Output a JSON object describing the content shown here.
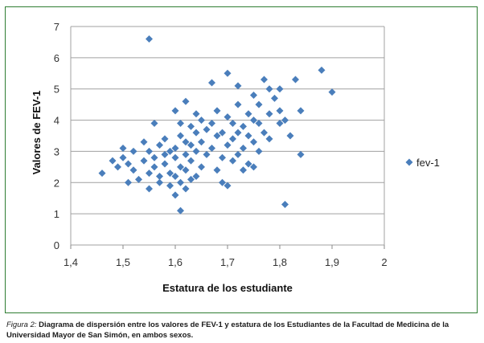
{
  "chart_data": {
    "type": "scatter",
    "xlabel": "Estatura de los estudiante",
    "ylabel": "Valores de FEV-1",
    "xlim": [
      1.4,
      2.0
    ],
    "ylim": [
      0,
      7
    ],
    "xticks": [
      "1,4",
      "1,5",
      "1,6",
      "1,7",
      "1,8",
      "1,9",
      "2"
    ],
    "yticks": [
      "0",
      "1",
      "2",
      "3",
      "4",
      "5",
      "6",
      "7"
    ],
    "grid": "horizontal",
    "legend_position": "right",
    "series": [
      {
        "name": "fev-1",
        "color": "#4a7ebb",
        "marker": "diamond",
        "points": [
          [
            1.46,
            2.3
          ],
          [
            1.48,
            2.7
          ],
          [
            1.49,
            2.5
          ],
          [
            1.5,
            2.8
          ],
          [
            1.5,
            3.1
          ],
          [
            1.51,
            2.0
          ],
          [
            1.51,
            2.6
          ],
          [
            1.52,
            3.0
          ],
          [
            1.52,
            2.4
          ],
          [
            1.53,
            2.1
          ],
          [
            1.54,
            2.7
          ],
          [
            1.54,
            3.3
          ],
          [
            1.55,
            1.8
          ],
          [
            1.55,
            2.3
          ],
          [
            1.55,
            3.0
          ],
          [
            1.55,
            6.6
          ],
          [
            1.56,
            2.5
          ],
          [
            1.56,
            3.9
          ],
          [
            1.56,
            2.8
          ],
          [
            1.57,
            2.2
          ],
          [
            1.57,
            3.2
          ],
          [
            1.57,
            2.0
          ],
          [
            1.58,
            2.9
          ],
          [
            1.58,
            2.6
          ],
          [
            1.58,
            3.4
          ],
          [
            1.59,
            2.3
          ],
          [
            1.59,
            3.0
          ],
          [
            1.59,
            1.9
          ],
          [
            1.6,
            1.6
          ],
          [
            1.6,
            2.2
          ],
          [
            1.6,
            2.8
          ],
          [
            1.6,
            3.1
          ],
          [
            1.6,
            4.3
          ],
          [
            1.61,
            1.1
          ],
          [
            1.61,
            2.0
          ],
          [
            1.61,
            2.5
          ],
          [
            1.61,
            3.5
          ],
          [
            1.61,
            3.9
          ],
          [
            1.62,
            1.8
          ],
          [
            1.62,
            2.4
          ],
          [
            1.62,
            2.9
          ],
          [
            1.62,
            3.3
          ],
          [
            1.62,
            4.6
          ],
          [
            1.63,
            2.1
          ],
          [
            1.63,
            2.7
          ],
          [
            1.63,
            3.2
          ],
          [
            1.63,
            3.8
          ],
          [
            1.64,
            2.2
          ],
          [
            1.64,
            3.0
          ],
          [
            1.64,
            3.6
          ],
          [
            1.64,
            4.2
          ],
          [
            1.65,
            2.5
          ],
          [
            1.65,
            3.3
          ],
          [
            1.65,
            4.0
          ],
          [
            1.66,
            2.9
          ],
          [
            1.66,
            3.7
          ],
          [
            1.67,
            3.1
          ],
          [
            1.67,
            3.9
          ],
          [
            1.67,
            5.2
          ],
          [
            1.68,
            2.4
          ],
          [
            1.68,
            3.5
          ],
          [
            1.68,
            4.3
          ],
          [
            1.69,
            2.0
          ],
          [
            1.69,
            2.8
          ],
          [
            1.69,
            3.6
          ],
          [
            1.7,
            1.9
          ],
          [
            1.7,
            3.2
          ],
          [
            1.7,
            4.1
          ],
          [
            1.7,
            5.5
          ],
          [
            1.71,
            2.7
          ],
          [
            1.71,
            3.4
          ],
          [
            1.71,
            3.9
          ],
          [
            1.72,
            2.9
          ],
          [
            1.72,
            3.6
          ],
          [
            1.72,
            4.5
          ],
          [
            1.72,
            5.1
          ],
          [
            1.73,
            2.4
          ],
          [
            1.73,
            3.1
          ],
          [
            1.73,
            3.8
          ],
          [
            1.74,
            2.6
          ],
          [
            1.74,
            3.5
          ],
          [
            1.74,
            4.2
          ],
          [
            1.75,
            2.5
          ],
          [
            1.75,
            3.3
          ],
          [
            1.75,
            4.0
          ],
          [
            1.75,
            4.8
          ],
          [
            1.76,
            3.0
          ],
          [
            1.76,
            3.9
          ],
          [
            1.76,
            4.5
          ],
          [
            1.77,
            3.6
          ],
          [
            1.77,
            5.3
          ],
          [
            1.78,
            3.4
          ],
          [
            1.78,
            4.2
          ],
          [
            1.78,
            5.0
          ],
          [
            1.79,
            4.7
          ],
          [
            1.8,
            3.9
          ],
          [
            1.8,
            5.0
          ],
          [
            1.8,
            4.3
          ],
          [
            1.81,
            1.3
          ],
          [
            1.81,
            4.0
          ],
          [
            1.82,
            3.5
          ],
          [
            1.83,
            5.3
          ],
          [
            1.84,
            4.3
          ],
          [
            1.84,
            2.9
          ],
          [
            1.88,
            5.6
          ],
          [
            1.9,
            4.9
          ]
        ]
      }
    ]
  },
  "caption": {
    "label": "Figura 2:",
    "text": " Diagrama de dispersión entre los valores de FEV-1 y estatura de los Estudiantes de la Facultad de Medicina de la Universidad Mayor de San Simón, en ambos sexos."
  }
}
